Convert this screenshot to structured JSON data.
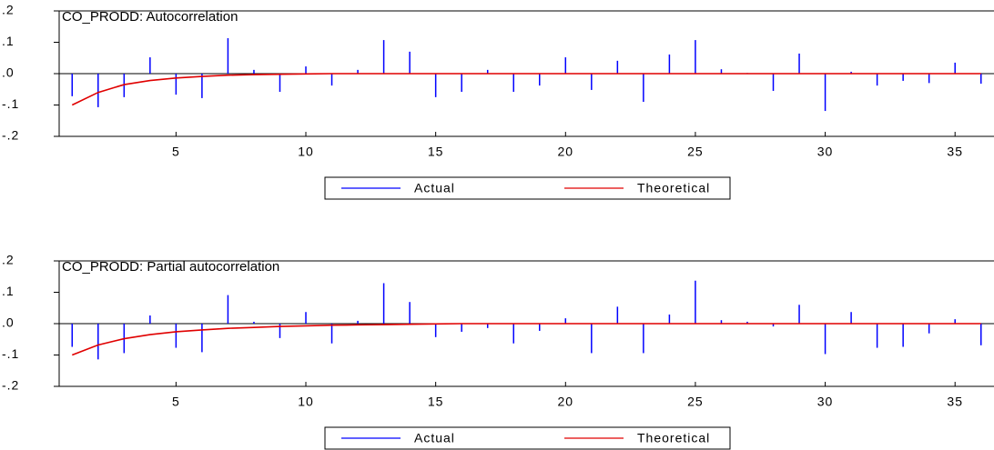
{
  "chart_data": [
    {
      "type": "bar",
      "title": "CO_PRODD: Autocorrelation",
      "x": [
        1,
        2,
        3,
        4,
        5,
        6,
        7,
        8,
        9,
        10,
        11,
        12,
        13,
        14,
        15,
        16,
        17,
        18,
        19,
        20,
        21,
        22,
        23,
        24,
        25,
        26,
        27,
        28,
        29,
        30,
        31,
        32,
        33,
        34,
        35,
        36
      ],
      "series": [
        {
          "name": "Actual",
          "color": "#0000ff",
          "style": "spike",
          "values": [
            -0.072,
            -0.107,
            -0.075,
            0.052,
            -0.067,
            -0.078,
            0.113,
            0.012,
            -0.058,
            0.023,
            -0.038,
            0.012,
            0.107,
            0.07,
            -0.075,
            -0.058,
            0.012,
            -0.058,
            -0.038,
            0.052,
            -0.052,
            0.041,
            -0.09,
            0.061,
            0.107,
            0.014,
            0.002,
            -0.055,
            0.064,
            -0.119,
            0.006,
            -0.038,
            -0.023,
            -0.03,
            0.035,
            -0.032
          ]
        },
        {
          "name": "Theoretical",
          "color": "#e00000",
          "style": "line",
          "values": [
            -0.1,
            -0.06,
            -0.035,
            -0.022,
            -0.014,
            -0.009,
            -0.005,
            -0.003,
            -0.002,
            -0.001,
            0,
            0,
            0,
            0,
            0,
            0,
            0,
            0,
            0,
            0,
            0,
            0,
            0,
            0,
            0,
            0,
            0,
            0,
            0,
            0,
            0,
            0,
            0,
            0,
            0,
            0
          ]
        }
      ],
      "xlim": [
        0.5,
        36.5
      ],
      "xticks": [
        5,
        10,
        15,
        20,
        25,
        30,
        35
      ],
      "ylim": [
        -0.2,
        0.2
      ],
      "yticks": [
        {
          "value": -0.2,
          "label": "-.2"
        },
        {
          "value": -0.1,
          "label": "-.1"
        },
        {
          "value": 0,
          "label": ".0"
        },
        {
          "value": 0.1,
          "label": ".1"
        },
        {
          "value": 0.2,
          "label": ".2"
        }
      ]
    },
    {
      "type": "bar",
      "title": "CO_PRODD: Partial autocorrelation",
      "x": [
        1,
        2,
        3,
        4,
        5,
        6,
        7,
        8,
        9,
        10,
        11,
        12,
        13,
        14,
        15,
        16,
        17,
        18,
        19,
        20,
        21,
        22,
        23,
        24,
        25,
        26,
        27,
        28,
        29,
        30,
        31,
        32,
        33,
        34,
        35,
        36
      ],
      "series": [
        {
          "name": "Actual",
          "color": "#0000ff",
          "style": "spike",
          "values": [
            -0.074,
            -0.114,
            -0.094,
            0.026,
            -0.077,
            -0.091,
            0.091,
            0.006,
            -0.046,
            0.037,
            -0.063,
            0.009,
            0.129,
            0.069,
            -0.043,
            -0.026,
            -0.014,
            -0.063,
            -0.023,
            0.017,
            -0.094,
            0.054,
            -0.094,
            0.029,
            0.137,
            0.011,
            0.006,
            -0.009,
            0.06,
            -0.097,
            0.037,
            -0.077,
            -0.074,
            -0.031,
            0.014,
            -0.069
          ]
        },
        {
          "name": "Theoretical",
          "color": "#e00000",
          "style": "line",
          "values": [
            -0.1,
            -0.068,
            -0.048,
            -0.035,
            -0.026,
            -0.02,
            -0.015,
            -0.012,
            -0.009,
            -0.007,
            -0.005,
            -0.004,
            -0.003,
            -0.002,
            -0.001,
            0,
            0,
            0,
            0,
            0,
            0,
            0,
            0,
            0,
            0,
            0,
            0,
            0,
            0,
            0,
            0,
            0,
            0,
            0,
            0,
            0
          ]
        }
      ],
      "xlim": [
        0.5,
        36.5
      ],
      "xticks": [
        5,
        10,
        15,
        20,
        25,
        30,
        35
      ],
      "ylim": [
        -0.2,
        0.2
      ],
      "yticks": [
        {
          "value": -0.2,
          "label": "-.2"
        },
        {
          "value": -0.1,
          "label": "-.1"
        },
        {
          "value": 0,
          "label": ".0"
        },
        {
          "value": 0.1,
          "label": ".1"
        },
        {
          "value": 0.2,
          "label": ".2"
        }
      ]
    }
  ]
}
